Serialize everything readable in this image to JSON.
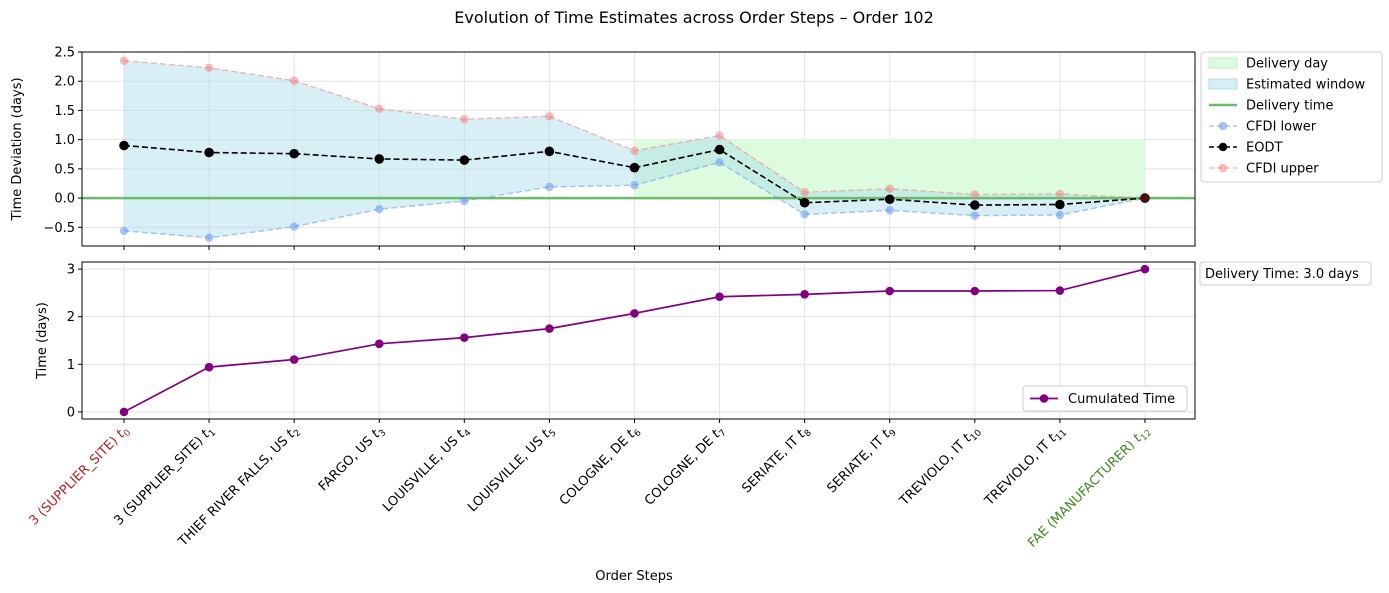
{
  "chart_data": [
    {
      "type": "line",
      "title": "Evolution of Time Estimates across Order Steps – Order 102",
      "ylabel": "Time Deviation (days)",
      "ylim": [
        -0.82,
        2.5
      ],
      "yticks": [
        -0.5,
        0.0,
        0.5,
        1.0,
        1.5,
        2.0,
        2.5
      ],
      "ytick_labels": [
        "−0.5",
        "0.0",
        "0.5",
        "1.0",
        "1.5",
        "2.0",
        "2.5"
      ],
      "grid": true,
      "legend_position": "outside-right",
      "x": [
        0,
        1,
        2,
        3,
        4,
        5,
        6,
        7,
        8,
        9,
        10,
        11,
        12
      ],
      "series": [
        {
          "name": "CFDI lower",
          "color": "#6495ed",
          "values": [
            -0.56,
            -0.68,
            -0.49,
            -0.19,
            -0.05,
            0.19,
            0.22,
            0.61,
            -0.28,
            -0.21,
            -0.3,
            -0.29,
            0.0
          ]
        },
        {
          "name": "EODT",
          "color": "#000000",
          "values": [
            0.9,
            0.78,
            0.76,
            0.67,
            0.65,
            0.8,
            0.52,
            0.83,
            -0.08,
            -0.02,
            -0.12,
            -0.11,
            0.0
          ]
        },
        {
          "name": "CFDI upper",
          "color": "#f08080",
          "values": [
            2.35,
            2.23,
            2.01,
            1.53,
            1.35,
            1.4,
            0.81,
            1.07,
            0.1,
            0.16,
            0.06,
            0.07,
            0.0
          ]
        }
      ],
      "legend": [
        {
          "label": "Delivery day",
          "kind": "patch",
          "color": "#ddfcdf",
          "edge": "#b8f5b8"
        },
        {
          "label": "Estimated window",
          "kind": "patch",
          "color": "#d7eef6",
          "edge": "#b5dcea"
        },
        {
          "label": "Delivery time",
          "kind": "line",
          "color": "#6abb6a"
        },
        {
          "label": "CFDI lower",
          "kind": "marker-dashed",
          "color": "#6495ed"
        },
        {
          "label": "EODT",
          "kind": "marker-dashed",
          "color": "#000000"
        },
        {
          "label": "CFDI upper",
          "kind": "marker-dashed",
          "color": "#f08080"
        }
      ],
      "delivery_day": {
        "from_x": 6,
        "to_x": 12,
        "y_low": 0.0,
        "y_high": 1.0,
        "color": "#ddfcdf"
      },
      "delivery_time_y": 0.0,
      "end_marker_color": "#4a1010"
    },
    {
      "type": "line",
      "ylabel": "Time (days)",
      "xlabel": "Order Steps",
      "ylim": [
        -0.15,
        3.15
      ],
      "yticks": [
        0,
        1,
        2,
        3
      ],
      "ytick_labels": [
        "0",
        "1",
        "2",
        "3"
      ],
      "grid": true,
      "legend_position": "lower-right",
      "annotation": "Delivery Time: 3.0 days",
      "x": [
        0,
        1,
        2,
        3,
        4,
        5,
        6,
        7,
        8,
        9,
        10,
        11,
        12
      ],
      "series": [
        {
          "name": "Cumulated Time",
          "color": "#800080",
          "values": [
            0.0,
            0.94,
            1.1,
            1.43,
            1.56,
            1.75,
            2.07,
            2.42,
            2.47,
            2.54,
            2.54,
            2.55,
            3.0
          ]
        }
      ],
      "xtick_labels": [
        {
          "place": "3 (SUPPLIER_SITE)",
          "sub": "0",
          "color": "#b22222"
        },
        {
          "place": "3 (SUPPLIER_SITE)",
          "sub": "1",
          "color": "#000000"
        },
        {
          "place": "THIEF RIVER FALLS, US",
          "sub": "2",
          "color": "#000000"
        },
        {
          "place": "FARGO, US",
          "sub": "3",
          "color": "#000000"
        },
        {
          "place": "LOUISVILLE, US",
          "sub": "4",
          "color": "#000000"
        },
        {
          "place": "LOUISVILLE, US",
          "sub": "5",
          "color": "#000000"
        },
        {
          "place": "COLOGNE, DE",
          "sub": "6",
          "color": "#000000"
        },
        {
          "place": "COLOGNE, DE",
          "sub": "7",
          "color": "#000000"
        },
        {
          "place": "SERIATE, IT",
          "sub": "8",
          "color": "#000000"
        },
        {
          "place": "SERIATE, IT",
          "sub": "9",
          "color": "#000000"
        },
        {
          "place": "TREVIOLO, IT",
          "sub": "10",
          "color": "#000000"
        },
        {
          "place": "TREVIOLO, IT",
          "sub": "11",
          "color": "#000000"
        },
        {
          "place": "FAE (MANUFACTURER)",
          "sub": "12",
          "color": "#3a8a1e"
        }
      ]
    }
  ]
}
